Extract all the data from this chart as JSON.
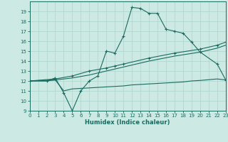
{
  "background_color": "#cce9e4",
  "grid_color": "#b0d8d2",
  "line_color": "#1a6b60",
  "xlabel": "Humidex (Indice chaleur)",
  "ylim": [
    9,
    20
  ],
  "xlim": [
    0,
    23
  ],
  "yticks": [
    9,
    10,
    11,
    12,
    13,
    14,
    15,
    16,
    17,
    18,
    19
  ],
  "xticks": [
    0,
    1,
    2,
    3,
    4,
    5,
    6,
    7,
    8,
    9,
    10,
    11,
    12,
    13,
    14,
    15,
    16,
    17,
    18,
    19,
    20,
    21,
    22,
    23
  ],
  "curve1_x": [
    0,
    2,
    3,
    4,
    5,
    6,
    7,
    8,
    9,
    10,
    11,
    12,
    13,
    14,
    15,
    16,
    17,
    18,
    19,
    20,
    22,
    23
  ],
  "curve1_y": [
    12.0,
    12.0,
    12.3,
    10.8,
    9.0,
    11.0,
    12.0,
    12.5,
    15.0,
    14.8,
    16.5,
    19.4,
    19.3,
    18.8,
    18.8,
    17.2,
    17.0,
    16.8,
    15.9,
    14.9,
    13.7,
    12.1
  ],
  "curve2_x": [
    0,
    3,
    5,
    7,
    9,
    10,
    11,
    14,
    17,
    20,
    22,
    23
  ],
  "curve2_y": [
    12.0,
    12.2,
    12.5,
    13.0,
    13.3,
    13.5,
    13.7,
    14.3,
    14.8,
    15.2,
    15.6,
    15.9
  ],
  "curve3_x": [
    0,
    3,
    5,
    7,
    9,
    10,
    11,
    14,
    17,
    20,
    22,
    23
  ],
  "curve3_y": [
    12.0,
    12.1,
    12.3,
    12.6,
    13.0,
    13.2,
    13.4,
    14.0,
    14.5,
    14.9,
    15.3,
    15.6
  ],
  "curve4_x": [
    0,
    2,
    3,
    4,
    5,
    6,
    7,
    8,
    9,
    10,
    11,
    12,
    13,
    14,
    15,
    16,
    17,
    18,
    19,
    20,
    22,
    23
  ],
  "curve4_y": [
    12.0,
    12.0,
    12.1,
    11.0,
    11.2,
    11.25,
    11.3,
    11.35,
    11.4,
    11.45,
    11.5,
    11.6,
    11.65,
    11.7,
    11.75,
    11.8,
    11.85,
    11.9,
    12.0,
    12.05,
    12.2,
    12.1
  ]
}
